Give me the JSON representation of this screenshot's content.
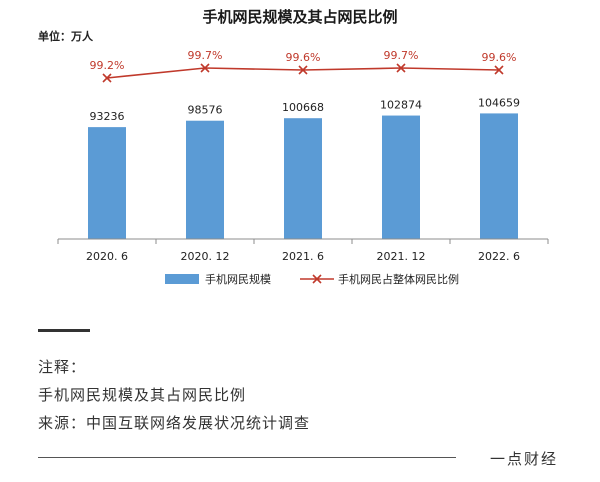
{
  "chart_data": {
    "type": "bar",
    "title": "手机网民规模及其占网民比例",
    "unit": "单位：万人",
    "categories": [
      "2020. 6",
      "2020. 12",
      "2021. 6",
      "2021. 12",
      "2022. 6"
    ],
    "series": [
      {
        "name": "手机网民规模",
        "kind": "bar",
        "values": [
          93236,
          98576,
          100668,
          102874,
          104659
        ]
      },
      {
        "name": "手机网民占整体网民比例",
        "kind": "line",
        "values": [
          99.2,
          99.7,
          99.6,
          99.7,
          99.6
        ],
        "labels": [
          "99.2%",
          "99.7%",
          "99.6%",
          "99.7%",
          "99.6%"
        ]
      }
    ],
    "ylim": [
      0,
      160000
    ],
    "legend_position": "bottom",
    "grid": false
  },
  "colors": {
    "bar": "#5b9bd5",
    "line": "#c0392b",
    "axis": "#8c8c8c"
  },
  "notes": {
    "heading": "注释：",
    "line": "手机网民规模及其占网民比例",
    "source": "来源：中国互联网络发展状况统计调查",
    "brand": "一点财经"
  }
}
